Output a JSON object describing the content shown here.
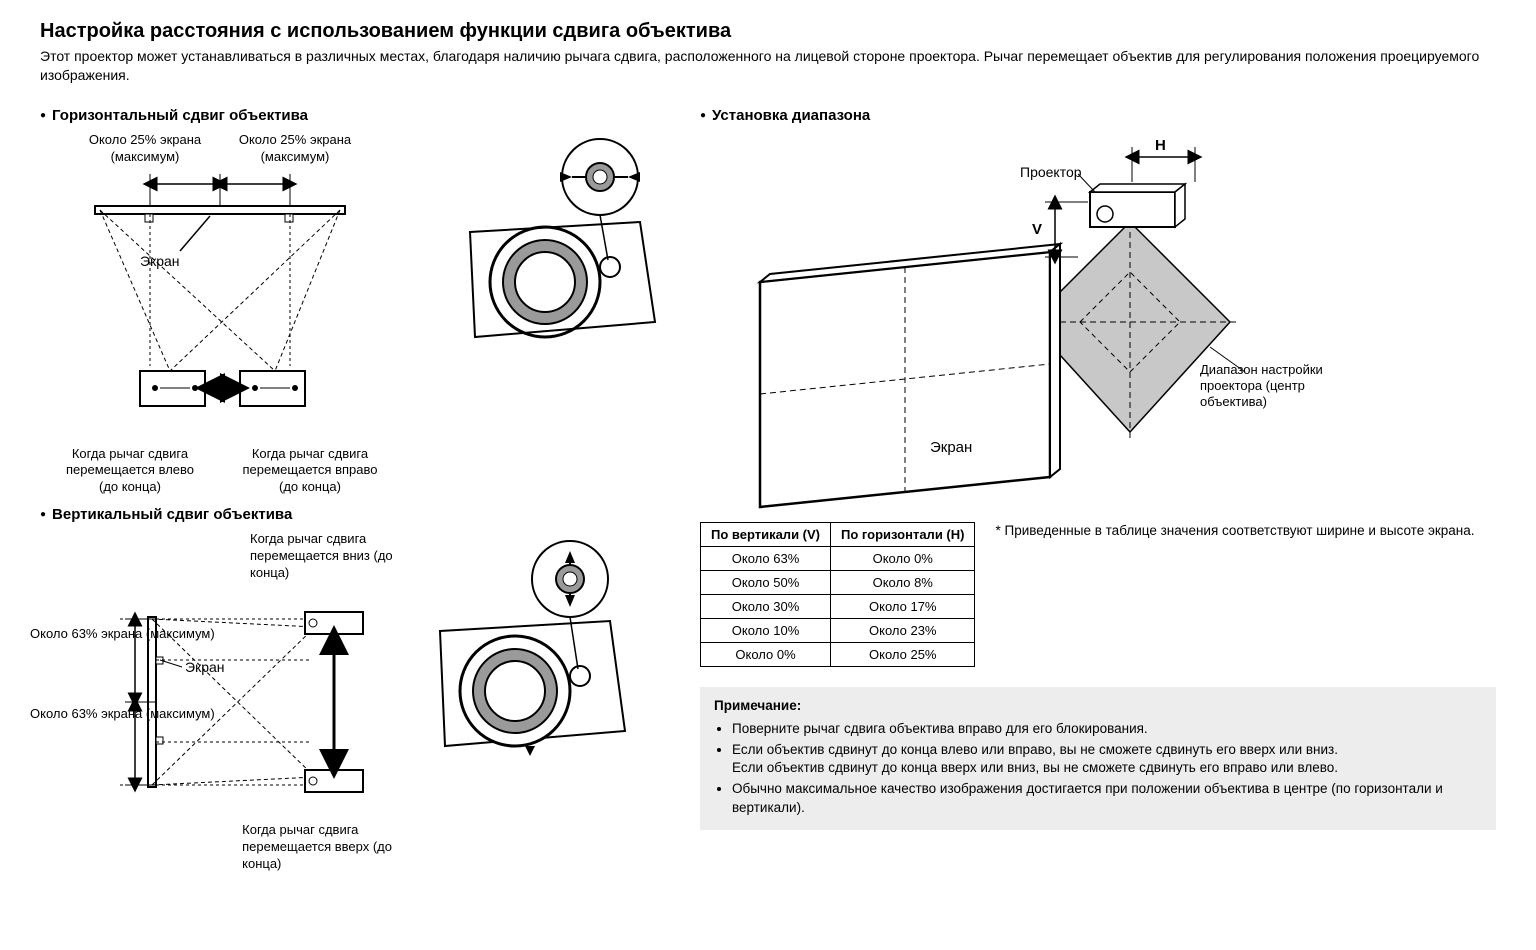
{
  "title": "Настройка расстояния с использованием функции сдвига объектива",
  "intro": "Этот проектор может устанавливаться в различных местах, благодаря наличию рычага сдвига, расположенного на лицевой стороне проектора. Рычаг перемещает объектив для регулирования положения проецируемого изображения.",
  "horizontal": {
    "heading": "Горизонтальный сдвиг объектива",
    "top_left_label": "Около 25% экрана\n(максимум)",
    "top_right_label": "Около 25% экрана\n(максимум)",
    "screen_label": "Экран",
    "left_caption": "Когда рычаг сдвига перемещается влево (до конца)",
    "right_caption": "Когда рычаг сдвига перемещается вправо (до конца)"
  },
  "vertical": {
    "heading": "Вертикальный сдвиг объектива",
    "top_caption": "Когда рычаг сдвига перемещается вниз (до конца)",
    "bottom_caption": "Когда рычаг сдвига перемещается вверх (до конца)",
    "left_upper_label": "Около 63% экрана (максимум)",
    "left_lower_label": "Около 63% экрана (максимум)",
    "screen_label": "Экран"
  },
  "range": {
    "heading": "Установка диапазона",
    "projector_label": "Проектор",
    "h_label": "H",
    "v_label": "V",
    "screen_label": "Экран",
    "range_caption": "Диапазон настройки проектора (центр объектива)",
    "table": {
      "columns": [
        "По вертикали (V)",
        "По горизонтали (H)"
      ],
      "rows": [
        [
          "Около 63%",
          "Около 0%"
        ],
        [
          "Около 50%",
          "Около 8%"
        ],
        [
          "Около 30%",
          "Около 17%"
        ],
        [
          "Около 10%",
          "Около 23%"
        ],
        [
          "Около 0%",
          "Около 25%"
        ]
      ]
    },
    "table_note": "Приведенные в таблице значения соответствуют ширине и высоте экрана."
  },
  "notes": {
    "title": "Примечание:",
    "items": [
      "Поверните рычаг сдвига объектива вправо для его блокирования.",
      "Если объектив сдвинут до конца влево или вправо, вы не сможете сдвинуть его вверх или вниз.\nЕсли объектив сдвинут до конца вверх или вниз, вы не сможете сдвинуть его вправо или влево.",
      "Обычно максимальное качество изображения достигается при положении объектива в центре (по горизонтали и вертикали)."
    ]
  },
  "style": {
    "colors": {
      "text": "#000000",
      "bg": "#ffffff",
      "note_bg": "#ededed",
      "diagram_fill": "#ffffff",
      "diagram_stroke": "#000000",
      "dash": "#000000",
      "lens_shade": "#9a9a9a"
    },
    "fonts": {
      "title_size": 20,
      "body_size": 14,
      "caption_size": 13
    }
  }
}
